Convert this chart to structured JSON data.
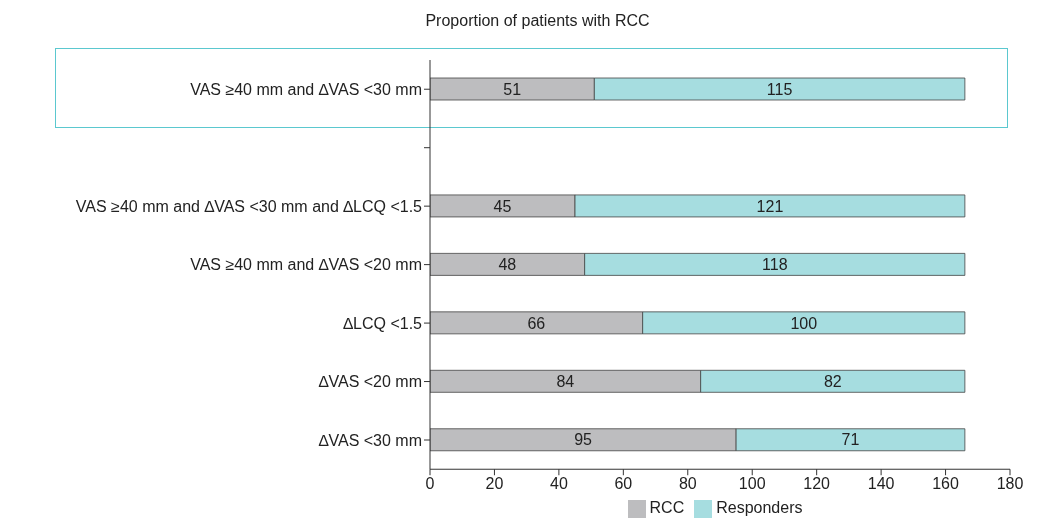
{
  "chart_data": {
    "type": "bar",
    "title": "Proportion of patients with RCC",
    "orientation": "horizontal",
    "stacked": true,
    "data_labels": true,
    "legend": "bottom",
    "categories": [
      "VAS ≥40 mm and ∆VAS <30 mm",
      null,
      "VAS ≥40 mm and ∆VAS <30 mm and ∆LCQ <1.5",
      "VAS ≥40 mm and ∆VAS <20 mm",
      "∆LCQ <1.5",
      "∆VAS <20 mm",
      "∆VAS <30 mm"
    ],
    "series": [
      {
        "name": "RCC",
        "color": "#bdbdbf",
        "values": [
          51,
          null,
          45,
          48,
          66,
          84,
          95
        ]
      },
      {
        "name": "Responders",
        "color": "#a6dde0",
        "values": [
          115,
          null,
          121,
          118,
          100,
          82,
          71
        ]
      }
    ],
    "xlim": [
      0,
      180
    ],
    "xticks": [
      0,
      20,
      40,
      60,
      80,
      100,
      120,
      140,
      160,
      180
    ]
  }
}
